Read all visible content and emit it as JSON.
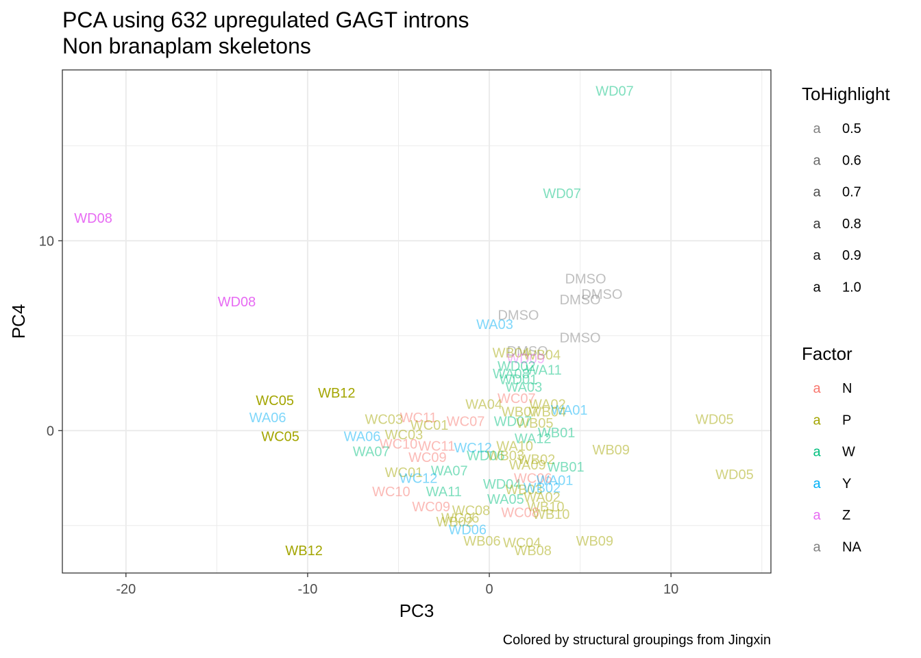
{
  "chart_data": {
    "type": "scatter",
    "title": "PCA using 632 upregulated GAGT introns",
    "subtitle": "Non branaplam skeletons",
    "xlabel": "PC3",
    "ylabel": "PC4",
    "caption": "Colored by structural groupings from Jingxin",
    "xlim": [
      -23.5,
      15.5
    ],
    "ylim": [
      -7.5,
      19.0
    ],
    "xticks": [
      -20,
      -10,
      0,
      10
    ],
    "yticks": [
      0,
      10
    ],
    "xtick_labels": [
      "-20",
      "-10",
      "0",
      "10"
    ],
    "ytick_labels": [
      "0",
      "10"
    ],
    "grid": true,
    "legend_placement": "right",
    "colors": {
      "N": "#F8766D",
      "P": "#A3A500",
      "W": "#00BF7D",
      "Y": "#00B0F6",
      "Z": "#E76BF3",
      "NA": "#808080"
    },
    "legends": [
      {
        "title": "ToHighlight",
        "key_glyph": "a",
        "entries": [
          {
            "label": "0.5",
            "alpha": 0.5
          },
          {
            "label": "0.6",
            "alpha": 0.6
          },
          {
            "label": "0.7",
            "alpha": 0.7
          },
          {
            "label": "0.8",
            "alpha": 0.8
          },
          {
            "label": "0.9",
            "alpha": 0.9
          },
          {
            "label": "1.0",
            "alpha": 1.0
          }
        ]
      },
      {
        "title": "Factor",
        "key_glyph": "a",
        "entries": [
          {
            "label": "N",
            "group": "N"
          },
          {
            "label": "P",
            "group": "P"
          },
          {
            "label": "W",
            "group": "W"
          },
          {
            "label": "Y",
            "group": "Y"
          },
          {
            "label": "Z",
            "group": "Z"
          },
          {
            "label": "NA",
            "group": "NA"
          }
        ]
      }
    ],
    "points": [
      {
        "label": "WD07",
        "x": 6.9,
        "y": 17.9,
        "group": "W",
        "alpha": 0.5
      },
      {
        "label": "WD07",
        "x": 4.0,
        "y": 12.5,
        "group": "W",
        "alpha": 0.5
      },
      {
        "label": "WD08",
        "x": -21.8,
        "y": 11.2,
        "group": "Z",
        "alpha": 1.0
      },
      {
        "label": "WD08",
        "x": -13.9,
        "y": 6.8,
        "group": "Z",
        "alpha": 1.0
      },
      {
        "label": "DMSO",
        "x": 5.3,
        "y": 8.0,
        "group": "NA",
        "alpha": 0.5
      },
      {
        "label": "DMSO",
        "x": 6.2,
        "y": 7.2,
        "group": "NA",
        "alpha": 0.5
      },
      {
        "label": "DMSO",
        "x": 5.0,
        "y": 6.9,
        "group": "NA",
        "alpha": 0.5
      },
      {
        "label": "DMSO",
        "x": 1.6,
        "y": 6.1,
        "group": "NA",
        "alpha": 0.5
      },
      {
        "label": "DMSO",
        "x": 5.0,
        "y": 4.9,
        "group": "NA",
        "alpha": 0.5
      },
      {
        "label": "DMSO",
        "x": 2.1,
        "y": 4.2,
        "group": "NA",
        "alpha": 0.5
      },
      {
        "label": "WA03",
        "x": 0.3,
        "y": 5.6,
        "group": "Y",
        "alpha": 0.5
      },
      {
        "label": "WB04",
        "x": 1.2,
        "y": 4.1,
        "group": "P",
        "alpha": 0.5
      },
      {
        "label": "WB04",
        "x": 2.9,
        "y": 4.0,
        "group": "P",
        "alpha": 0.5
      },
      {
        "label": "WD09",
        "x": 2.0,
        "y": 3.8,
        "group": "Z",
        "alpha": 0.5
      },
      {
        "label": "WD02",
        "x": 1.5,
        "y": 3.4,
        "group": "W",
        "alpha": 0.5
      },
      {
        "label": "WA11",
        "x": 3.0,
        "y": 3.2,
        "group": "W",
        "alpha": 0.5
      },
      {
        "label": "WA08",
        "x": 1.2,
        "y": 3.0,
        "group": "W",
        "alpha": 0.5
      },
      {
        "label": "WD01",
        "x": 1.6,
        "y": 2.7,
        "group": "W",
        "alpha": 0.5
      },
      {
        "label": "WA03",
        "x": 1.9,
        "y": 2.3,
        "group": "W",
        "alpha": 0.5
      },
      {
        "label": "WC05",
        "x": -11.8,
        "y": 1.6,
        "group": "P",
        "alpha": 1.0
      },
      {
        "label": "WB12",
        "x": -8.4,
        "y": 2.0,
        "group": "P",
        "alpha": 1.0
      },
      {
        "label": "WA06",
        "x": -12.2,
        "y": 0.7,
        "group": "Y",
        "alpha": 0.5
      },
      {
        "label": "WC05",
        "x": -11.5,
        "y": -0.3,
        "group": "P",
        "alpha": 1.0
      },
      {
        "label": "WC07",
        "x": 1.5,
        "y": 1.7,
        "group": "N",
        "alpha": 0.5
      },
      {
        "label": "WA04",
        "x": -0.3,
        "y": 1.4,
        "group": "P",
        "alpha": 0.5
      },
      {
        "label": "WA02",
        "x": 3.2,
        "y": 1.4,
        "group": "P",
        "alpha": 0.5
      },
      {
        "label": "WB07",
        "x": 1.7,
        "y": 1.0,
        "group": "P",
        "alpha": 0.5
      },
      {
        "label": "WB04",
        "x": 3.2,
        "y": 1.0,
        "group": "P",
        "alpha": 0.5
      },
      {
        "label": "WA01",
        "x": 4.4,
        "y": 1.1,
        "group": "Y",
        "alpha": 0.5
      },
      {
        "label": "WC03",
        "x": -5.8,
        "y": 0.6,
        "group": "P",
        "alpha": 0.5
      },
      {
        "label": "WC11",
        "x": -3.9,
        "y": 0.7,
        "group": "N",
        "alpha": 0.5
      },
      {
        "label": "WC01",
        "x": -3.3,
        "y": 0.3,
        "group": "P",
        "alpha": 0.5
      },
      {
        "label": "WC07",
        "x": -1.3,
        "y": 0.5,
        "group": "N",
        "alpha": 0.5
      },
      {
        "label": "WD07",
        "x": 1.3,
        "y": 0.5,
        "group": "W",
        "alpha": 0.5
      },
      {
        "label": "WB05",
        "x": 2.5,
        "y": 0.4,
        "group": "P",
        "alpha": 0.5
      },
      {
        "label": "WD05",
        "x": 12.4,
        "y": 0.6,
        "group": "P",
        "alpha": 0.5
      },
      {
        "label": "WB01",
        "x": 3.7,
        "y": -0.1,
        "group": "W",
        "alpha": 0.5
      },
      {
        "label": "WA12",
        "x": 2.4,
        "y": -0.4,
        "group": "W",
        "alpha": 0.5
      },
      {
        "label": "WA06",
        "x": -7.0,
        "y": -0.3,
        "group": "Y",
        "alpha": 0.5
      },
      {
        "label": "WC03",
        "x": -4.7,
        "y": -0.2,
        "group": "P",
        "alpha": 0.5
      },
      {
        "label": "WC10",
        "x": -5.0,
        "y": -0.7,
        "group": "N",
        "alpha": 0.5
      },
      {
        "label": "WC11",
        "x": -2.9,
        "y": -0.8,
        "group": "N",
        "alpha": 0.5
      },
      {
        "label": "WA07",
        "x": -6.5,
        "y": -1.1,
        "group": "W",
        "alpha": 0.5
      },
      {
        "label": "WC09",
        "x": -3.4,
        "y": -1.4,
        "group": "N",
        "alpha": 0.5
      },
      {
        "label": "WC12",
        "x": -0.9,
        "y": -0.9,
        "group": "Y",
        "alpha": 0.5
      },
      {
        "label": "WA10",
        "x": 1.4,
        "y": -0.8,
        "group": "P",
        "alpha": 0.5
      },
      {
        "label": "WD06",
        "x": -0.2,
        "y": -1.3,
        "group": "W",
        "alpha": 0.5
      },
      {
        "label": "WB03",
        "x": 0.9,
        "y": -1.3,
        "group": "P",
        "alpha": 0.5
      },
      {
        "label": "WB02",
        "x": 2.6,
        "y": -1.5,
        "group": "P",
        "alpha": 0.5
      },
      {
        "label": "WA09",
        "x": 2.1,
        "y": -1.8,
        "group": "P",
        "alpha": 0.5
      },
      {
        "label": "WB01",
        "x": 4.2,
        "y": -1.9,
        "group": "W",
        "alpha": 0.5
      },
      {
        "label": "WB09",
        "x": 6.7,
        "y": -1.0,
        "group": "P",
        "alpha": 0.5
      },
      {
        "label": "WD05",
        "x": 13.5,
        "y": -2.3,
        "group": "P",
        "alpha": 0.5
      },
      {
        "label": "WC01",
        "x": -4.7,
        "y": -2.2,
        "group": "P",
        "alpha": 0.5
      },
      {
        "label": "WA07",
        "x": -2.2,
        "y": -2.1,
        "group": "W",
        "alpha": 0.5
      },
      {
        "label": "WC12",
        "x": -3.9,
        "y": -2.5,
        "group": "Y",
        "alpha": 0.5
      },
      {
        "label": "WD04",
        "x": 0.7,
        "y": -2.8,
        "group": "W",
        "alpha": 0.5
      },
      {
        "label": "WC06",
        "x": 2.4,
        "y": -2.5,
        "group": "N",
        "alpha": 0.5
      },
      {
        "label": "WA01",
        "x": 3.6,
        "y": -2.6,
        "group": "Y",
        "alpha": 0.5
      },
      {
        "label": "WB03",
        "x": 1.9,
        "y": -3.1,
        "group": "P",
        "alpha": 0.5
      },
      {
        "label": "WB02",
        "x": 2.9,
        "y": -3.0,
        "group": "Y",
        "alpha": 0.5
      },
      {
        "label": "WC10",
        "x": -5.4,
        "y": -3.2,
        "group": "N",
        "alpha": 0.5
      },
      {
        "label": "WA11",
        "x": -2.5,
        "y": -3.2,
        "group": "W",
        "alpha": 0.5
      },
      {
        "label": "WA05",
        "x": 0.9,
        "y": -3.6,
        "group": "W",
        "alpha": 0.5
      },
      {
        "label": "WA02",
        "x": 2.9,
        "y": -3.5,
        "group": "P",
        "alpha": 0.5
      },
      {
        "label": "WC09",
        "x": -3.2,
        "y": -4.0,
        "group": "N",
        "alpha": 0.5
      },
      {
        "label": "WC08",
        "x": -1.0,
        "y": -4.2,
        "group": "P",
        "alpha": 0.5
      },
      {
        "label": "WC06",
        "x": -1.6,
        "y": -4.6,
        "group": "P",
        "alpha": 0.5
      },
      {
        "label": "WB02",
        "x": -1.9,
        "y": -4.8,
        "group": "P",
        "alpha": 0.5
      },
      {
        "label": "WB10",
        "x": 3.1,
        "y": -4.0,
        "group": "P",
        "alpha": 0.5
      },
      {
        "label": "WC08",
        "x": 1.7,
        "y": -4.3,
        "group": "N",
        "alpha": 0.5
      },
      {
        "label": "WB10",
        "x": 3.4,
        "y": -4.4,
        "group": "P",
        "alpha": 0.5
      },
      {
        "label": "WD06",
        "x": -1.2,
        "y": -5.2,
        "group": "Y",
        "alpha": 0.5
      },
      {
        "label": "WB06",
        "x": -0.4,
        "y": -5.8,
        "group": "P",
        "alpha": 0.5
      },
      {
        "label": "WC04",
        "x": 1.8,
        "y": -5.9,
        "group": "P",
        "alpha": 0.5
      },
      {
        "label": "WB08",
        "x": 2.4,
        "y": -6.3,
        "group": "P",
        "alpha": 0.5
      },
      {
        "label": "WB09",
        "x": 5.8,
        "y": -5.8,
        "group": "P",
        "alpha": 0.5
      },
      {
        "label": "WB12",
        "x": -10.2,
        "y": -6.3,
        "group": "P",
        "alpha": 1.0
      }
    ]
  }
}
